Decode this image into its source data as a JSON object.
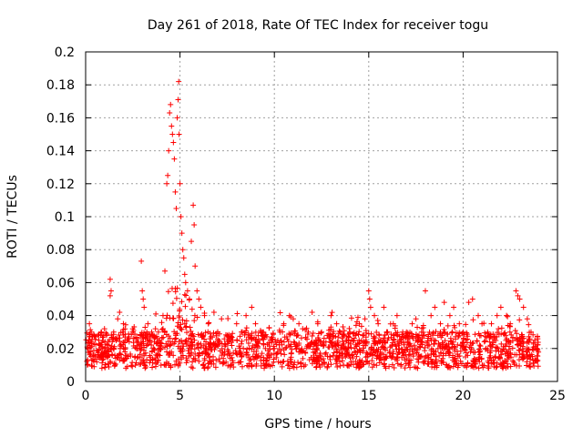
{
  "chart_data": {
    "type": "scatter",
    "title": "Day 261 of 2018, Rate Of TEC Index for receiver togu",
    "xlabel": "GPS time / hours",
    "ylabel": "ROTI / TECUs",
    "xlim": [
      0,
      25
    ],
    "ylim": [
      0,
      0.2
    ],
    "xticks": [
      0,
      5,
      10,
      15,
      20,
      25
    ],
    "yticks": [
      0,
      0.02,
      0.04,
      0.06,
      0.08,
      0.1,
      0.12,
      0.14,
      0.16,
      0.18,
      0.2
    ],
    "grid": true,
    "marker": "+",
    "color": "#ff0000",
    "series": [
      {
        "name": "ROTI",
        "description_of_density": "dense band of points 0.005-0.04 TECUs across 0-24 h; storm spike 4-6 h",
        "points": [
          [
            0.1,
            0.02
          ],
          [
            0.2,
            0.035
          ],
          [
            0.3,
            0.03
          ],
          [
            0.5,
            0.015
          ],
          [
            0.7,
            0.025
          ],
          [
            0.8,
            0.028
          ],
          [
            1.0,
            0.032
          ],
          [
            1.2,
            0.018
          ],
          [
            1.3,
            0.052
          ],
          [
            1.35,
            0.055
          ],
          [
            1.3,
            0.062
          ],
          [
            1.5,
            0.02
          ],
          [
            1.7,
            0.038
          ],
          [
            1.8,
            0.042
          ],
          [
            2.0,
            0.035
          ],
          [
            2.2,
            0.025
          ],
          [
            2.5,
            0.03
          ],
          [
            2.7,
            0.02
          ],
          [
            2.95,
            0.073
          ],
          [
            3.0,
            0.055
          ],
          [
            3.05,
            0.05
          ],
          [
            3.1,
            0.045
          ],
          [
            3.3,
            0.035
          ],
          [
            3.5,
            0.03
          ],
          [
            3.7,
            0.032
          ],
          [
            3.9,
            0.025
          ],
          [
            4.1,
            0.04
          ],
          [
            4.2,
            0.067
          ],
          [
            4.3,
            0.12
          ],
          [
            4.35,
            0.125
          ],
          [
            4.4,
            0.14
          ],
          [
            4.45,
            0.163
          ],
          [
            4.5,
            0.168
          ],
          [
            4.55,
            0.155
          ],
          [
            4.6,
            0.15
          ],
          [
            4.65,
            0.145
          ],
          [
            4.7,
            0.135
          ],
          [
            4.75,
            0.115
          ],
          [
            4.8,
            0.105
          ],
          [
            4.85,
            0.16
          ],
          [
            4.9,
            0.171
          ],
          [
            4.93,
            0.182
          ],
          [
            4.95,
            0.15
          ],
          [
            5.0,
            0.12
          ],
          [
            5.05,
            0.1
          ],
          [
            5.1,
            0.09
          ],
          [
            5.15,
            0.08
          ],
          [
            5.2,
            0.075
          ],
          [
            5.25,
            0.065
          ],
          [
            5.3,
            0.06
          ],
          [
            5.4,
            0.055
          ],
          [
            5.5,
            0.05
          ],
          [
            5.6,
            0.085
          ],
          [
            5.7,
            0.107
          ],
          [
            5.75,
            0.095
          ],
          [
            5.8,
            0.07
          ],
          [
            5.9,
            0.055
          ],
          [
            6.0,
            0.05
          ],
          [
            6.1,
            0.045
          ],
          [
            6.3,
            0.04
          ],
          [
            6.5,
            0.035
          ],
          [
            6.8,
            0.042
          ],
          [
            7.0,
            0.03
          ],
          [
            7.2,
            0.038
          ],
          [
            7.5,
            0.028
          ],
          [
            7.8,
            0.025
          ],
          [
            8.0,
            0.035
          ],
          [
            8.3,
            0.03
          ],
          [
            8.5,
            0.04
          ],
          [
            8.8,
            0.045
          ],
          [
            9.0,
            0.035
          ],
          [
            9.3,
            0.03
          ],
          [
            9.5,
            0.028
          ],
          [
            9.8,
            0.025
          ],
          [
            10.0,
            0.02
          ],
          [
            10.3,
            0.03
          ],
          [
            10.5,
            0.035
          ],
          [
            10.8,
            0.04
          ],
          [
            11.0,
            0.038
          ],
          [
            11.3,
            0.035
          ],
          [
            11.5,
            0.032
          ],
          [
            11.8,
            0.03
          ],
          [
            12.0,
            0.042
          ],
          [
            12.3,
            0.035
          ],
          [
            12.5,
            0.03
          ],
          [
            12.8,
            0.028
          ],
          [
            13.0,
            0.04
          ],
          [
            13.3,
            0.035
          ],
          [
            13.5,
            0.03
          ],
          [
            13.8,
            0.025
          ],
          [
            14.0,
            0.03
          ],
          [
            14.3,
            0.028
          ],
          [
            14.5,
            0.035
          ],
          [
            14.8,
            0.038
          ],
          [
            15.0,
            0.055
          ],
          [
            15.05,
            0.05
          ],
          [
            15.1,
            0.045
          ],
          [
            15.3,
            0.04
          ],
          [
            15.5,
            0.035
          ],
          [
            15.8,
            0.045
          ],
          [
            16.0,
            0.03
          ],
          [
            16.3,
            0.035
          ],
          [
            16.5,
            0.04
          ],
          [
            16.8,
            0.03
          ],
          [
            17.0,
            0.03
          ],
          [
            17.3,
            0.035
          ],
          [
            17.5,
            0.038
          ],
          [
            17.8,
            0.03
          ],
          [
            18.0,
            0.055
          ],
          [
            18.3,
            0.04
          ],
          [
            18.5,
            0.045
          ],
          [
            18.8,
            0.035
          ],
          [
            19.0,
            0.048
          ],
          [
            19.3,
            0.04
          ],
          [
            19.5,
            0.045
          ],
          [
            19.8,
            0.035
          ],
          [
            20.0,
            0.03
          ],
          [
            20.3,
            0.048
          ],
          [
            20.5,
            0.05
          ],
          [
            20.8,
            0.04
          ],
          [
            21.0,
            0.035
          ],
          [
            21.3,
            0.03
          ],
          [
            21.5,
            0.035
          ],
          [
            21.8,
            0.04
          ],
          [
            22.0,
            0.045
          ],
          [
            22.3,
            0.04
          ],
          [
            22.5,
            0.035
          ],
          [
            22.8,
            0.055
          ],
          [
            22.9,
            0.052
          ],
          [
            23.0,
            0.05
          ],
          [
            23.2,
            0.045
          ],
          [
            23.4,
            0.038
          ],
          [
            23.6,
            0.03
          ],
          [
            23.8,
            0.025
          ],
          [
            23.9,
            0.02
          ]
        ]
      }
    ]
  }
}
